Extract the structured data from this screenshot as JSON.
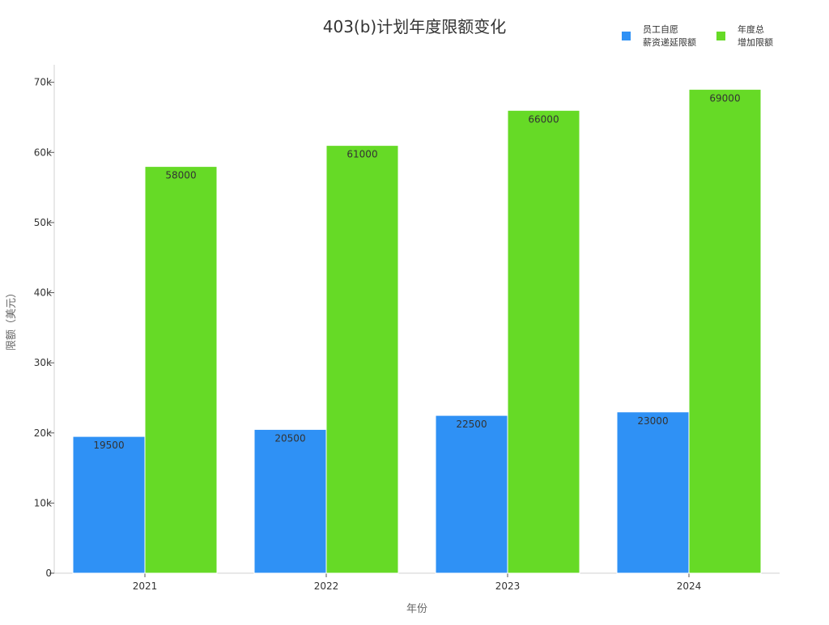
{
  "chart_data": {
    "type": "bar",
    "title": "403(b)计划年度限额变化",
    "xlabel": "年份",
    "ylabel": "限额（美元）",
    "categories": [
      "2021",
      "2022",
      "2023",
      "2024"
    ],
    "series": [
      {
        "name": "员工自愿\n薪资递延限额",
        "color": "#2f91f5",
        "values": [
          19500,
          20500,
          22500,
          23000
        ]
      },
      {
        "name": "年度总\n增加限额",
        "color": "#66da26",
        "values": [
          58000,
          61000,
          66000,
          69000
        ]
      }
    ],
    "ylim": [
      0,
      72500
    ],
    "yticks": [
      0,
      10000,
      20000,
      30000,
      40000,
      50000,
      60000,
      70000
    ],
    "ytick_labels": [
      "0",
      "10k",
      "20k",
      "30k",
      "40k",
      "50k",
      "60k",
      "70k"
    ],
    "grid": false,
    "legend_position": "top-right"
  }
}
